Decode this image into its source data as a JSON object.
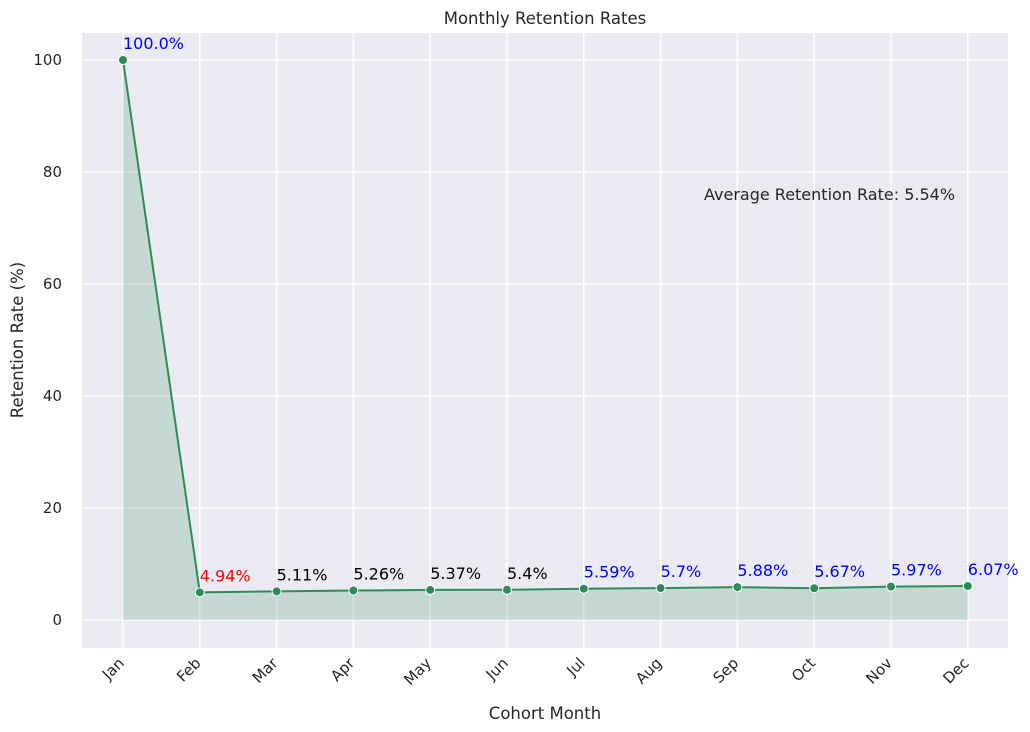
{
  "chart_data": {
    "type": "line",
    "title": "Monthly Retention Rates",
    "xlabel": "Cohort Month",
    "ylabel": "Retention Rate (%)",
    "categories": [
      "Jan",
      "Feb",
      "Mar",
      "Apr",
      "May",
      "Jun",
      "Jul",
      "Aug",
      "Sep",
      "Oct",
      "Nov",
      "Dec"
    ],
    "values": [
      100.0,
      4.94,
      5.11,
      5.26,
      5.37,
      5.4,
      5.59,
      5.7,
      5.88,
      5.67,
      5.97,
      6.07
    ],
    "data_labels": [
      "100.0%",
      "4.94%",
      "5.11%",
      "5.26%",
      "5.37%",
      "5.4%",
      "5.59%",
      "5.7%",
      "5.88%",
      "5.67%",
      "5.97%",
      "6.07%"
    ],
    "label_colors": [
      "#0000ff",
      "#ff0000",
      "#000000",
      "#000000",
      "#000000",
      "#000000",
      "#0000ff",
      "#0000ff",
      "#0000ff",
      "#0000ff",
      "#0000ff",
      "#0000ff"
    ],
    "yticks": [
      0,
      20,
      40,
      60,
      80,
      100
    ],
    "ylim": [
      -5,
      105
    ],
    "grid": true,
    "filled_area": true,
    "annotation": "Average Retention Rate: 5.54%",
    "colors": {
      "line": "#2e8b57",
      "fill": "#2e8b57",
      "plot_background": "#eaeaf2",
      "grid": "#ffffff"
    }
  }
}
